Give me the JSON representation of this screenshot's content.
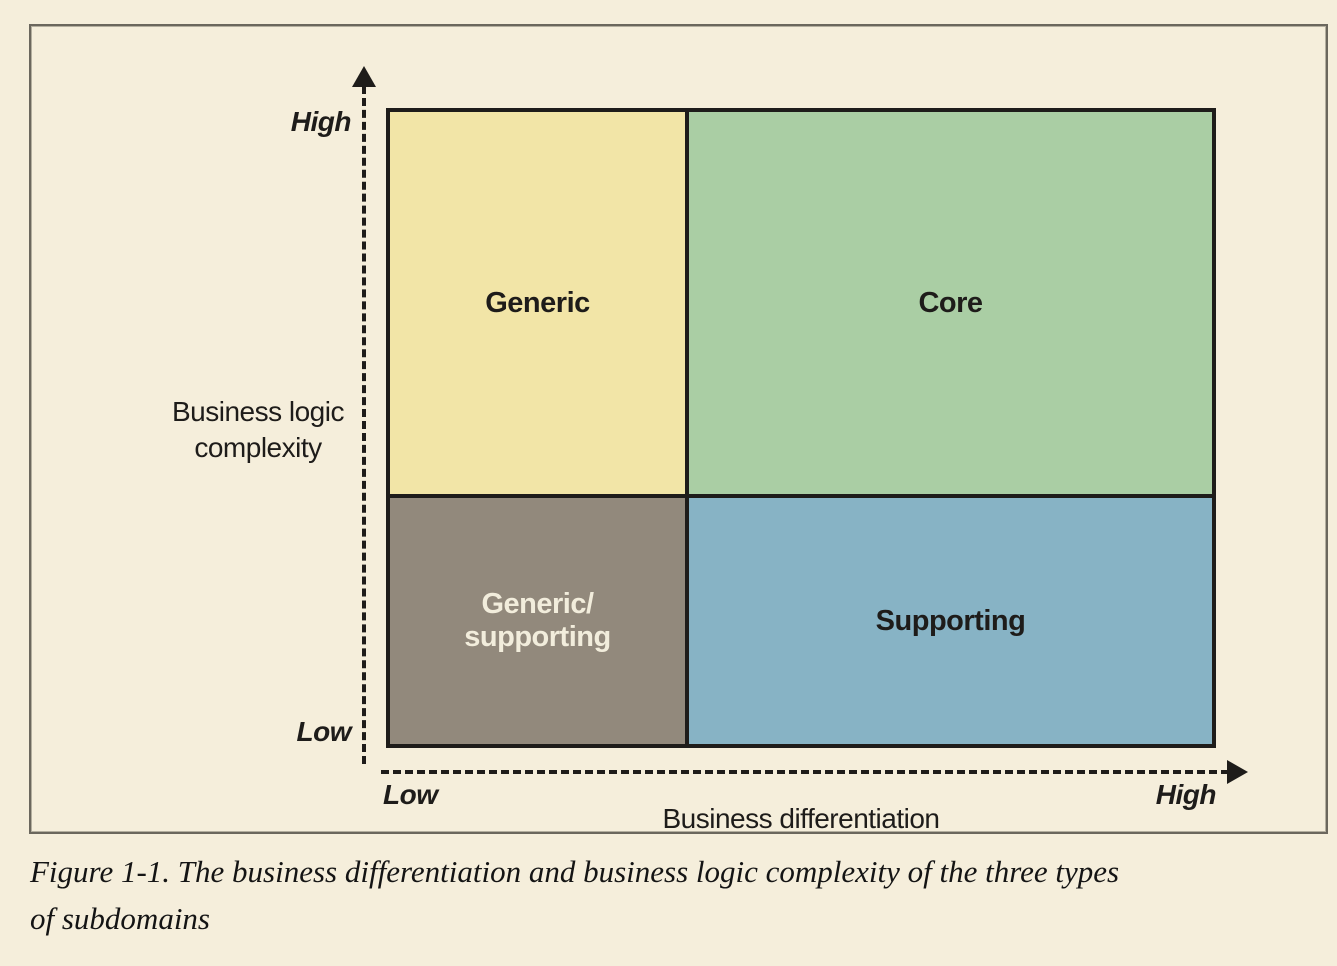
{
  "figure": {
    "quadrants": [
      {
        "id": "generic",
        "label": "Generic",
        "fill": "#F2E5A7",
        "text_color": "#1E1C1A"
      },
      {
        "id": "core",
        "label": "Core",
        "fill": "#AACEA4",
        "text_color": "#1E1C1A"
      },
      {
        "id": "generic-supporting",
        "label_line1": "Generic/",
        "label_line2": "supporting",
        "fill": "#92897C",
        "text_color": "#F2EDDC"
      },
      {
        "id": "supporting",
        "label": "Supporting",
        "fill": "#87B3C5",
        "text_color": "#1E1C1A"
      }
    ],
    "y_axis": {
      "title_line1": "Business logic",
      "title_line2": "complexity",
      "high_label": "High",
      "low_label": "Low"
    },
    "x_axis": {
      "title": "Business differentiation",
      "high_label": "High",
      "low_label": "Low"
    }
  },
  "caption": {
    "line1": "Figure 1-1. The business differentiation and business logic complexity of the three types",
    "line2": "of subdomains"
  },
  "colors": {
    "page_background": "#F5EEDB",
    "frame_border": "#6B675D",
    "axis_line": "#1E1C1A",
    "quadrant_border": "#1E1C1A",
    "generic_fill": "#F2E5A7",
    "core_fill": "#AACEA4",
    "generic_supporting_fill": "#92897C",
    "supporting_fill": "#87B3C5",
    "generic_supporting_text": "#F2EDDC",
    "caption_text": "#141414"
  }
}
